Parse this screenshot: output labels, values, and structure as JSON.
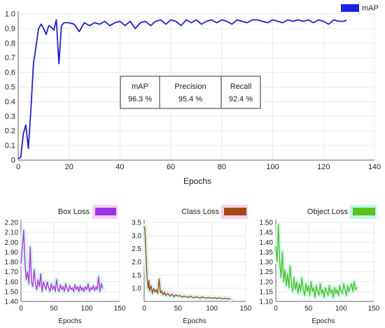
{
  "colors": {
    "map": "#1f1fcf",
    "map_legend": "#1a22e6",
    "box": "#b43ad8",
    "box_legend": "#9d35e8",
    "class": "#a04a20",
    "class_legend": "#a34a14",
    "object": "#4dc52a",
    "object_legend": "#5ac21c",
    "halo": "#d9f6f1",
    "legend_halo": "#f7c3ec",
    "grid": "#e9e9e9",
    "axis": "#666666",
    "text": "#222222"
  },
  "metrics_table": {
    "headers": [
      "mAP",
      "Precision",
      "Recall"
    ],
    "values": [
      "96.3 %",
      "95.4 %",
      "92.4 %"
    ]
  },
  "chart_data": [
    {
      "id": "map",
      "type": "line",
      "xlabel": "Epochs",
      "ylabel": "",
      "xlim": [
        0,
        140
      ],
      "ylim": [
        0,
        1.0
      ],
      "xticks": [
        "0",
        "20",
        "40",
        "60",
        "80",
        "100",
        "120",
        "140"
      ],
      "yticks": [
        "0",
        "0.1",
        "0.2",
        "0.3",
        "0.4",
        "0.5",
        "0.6",
        "0.7",
        "0.8",
        "0.9",
        "1.0"
      ],
      "grid": true,
      "legend": "top-right",
      "series": [
        {
          "name": "mAP",
          "x": [
            0,
            1,
            2,
            3,
            4,
            5,
            6,
            7,
            8,
            9,
            10,
            11,
            12,
            13,
            14,
            15,
            16,
            17,
            18,
            19,
            20,
            22,
            24,
            26,
            28,
            30,
            32,
            34,
            36,
            38,
            40,
            42,
            44,
            46,
            48,
            50,
            52,
            54,
            56,
            58,
            60,
            62,
            64,
            66,
            68,
            70,
            72,
            74,
            76,
            78,
            80,
            82,
            84,
            86,
            88,
            90,
            92,
            94,
            96,
            98,
            100,
            102,
            104,
            106,
            108,
            110,
            112,
            114,
            116,
            118,
            120,
            122,
            124,
            126,
            128,
            129
          ],
          "y": [
            0.01,
            0.02,
            0.18,
            0.24,
            0.08,
            0.35,
            0.66,
            0.78,
            0.9,
            0.93,
            0.9,
            0.86,
            0.92,
            0.91,
            0.89,
            0.96,
            0.66,
            0.92,
            0.94,
            0.94,
            0.94,
            0.93,
            0.88,
            0.94,
            0.92,
            0.94,
            0.93,
            0.95,
            0.92,
            0.94,
            0.95,
            0.92,
            0.95,
            0.9,
            0.94,
            0.95,
            0.92,
            0.95,
            0.96,
            0.93,
            0.96,
            0.95,
            0.92,
            0.96,
            0.94,
            0.96,
            0.93,
            0.95,
            0.96,
            0.94,
            0.96,
            0.95,
            0.93,
            0.96,
            0.95,
            0.94,
            0.96,
            0.96,
            0.95,
            0.94,
            0.96,
            0.95,
            0.94,
            0.96,
            0.95,
            0.96,
            0.95,
            0.96,
            0.94,
            0.96,
            0.95,
            0.93,
            0.96,
            0.95,
            0.95,
            0.96
          ]
        }
      ]
    },
    {
      "id": "box",
      "type": "line",
      "xlabel": "Epochs",
      "ylabel": "",
      "xlim": [
        0,
        150
      ],
      "ylim": [
        1.4,
        2.2
      ],
      "xticks": [
        "0",
        "50",
        "100",
        "150"
      ],
      "yticks": [
        "1.40",
        "1.50",
        "1.60",
        "1.70",
        "1.80",
        "1.90",
        "2.00",
        "2.10",
        "2.20"
      ],
      "grid": true,
      "legend": "top",
      "series": [
        {
          "name": "Box Loss",
          "x": [
            0,
            2,
            4,
            6,
            8,
            10,
            12,
            14,
            16,
            18,
            20,
            22,
            24,
            26,
            28,
            30,
            32,
            34,
            36,
            38,
            40,
            42,
            44,
            46,
            48,
            50,
            52,
            54,
            56,
            58,
            60,
            62,
            64,
            66,
            68,
            70,
            72,
            74,
            76,
            78,
            80,
            82,
            84,
            86,
            88,
            90,
            92,
            94,
            96,
            98,
            100,
            102,
            104,
            106,
            108,
            110,
            112,
            114,
            116,
            118,
            120,
            122,
            124
          ],
          "y": [
            1.78,
            1.95,
            2.12,
            1.8,
            1.62,
            1.7,
            1.58,
            1.95,
            1.6,
            1.55,
            1.72,
            1.58,
            1.52,
            1.62,
            1.55,
            1.68,
            1.5,
            1.6,
            1.56,
            1.52,
            1.6,
            1.54,
            1.5,
            1.58,
            1.52,
            1.56,
            1.5,
            1.62,
            1.53,
            1.5,
            1.57,
            1.52,
            1.55,
            1.5,
            1.58,
            1.53,
            1.5,
            1.56,
            1.52,
            1.54,
            1.5,
            1.57,
            1.52,
            1.55,
            1.5,
            1.56,
            1.51,
            1.54,
            1.5,
            1.55,
            1.52,
            1.58,
            1.5,
            1.54,
            1.52,
            1.56,
            1.51,
            1.55,
            1.52,
            1.65,
            1.5,
            1.58,
            1.53
          ]
        }
      ]
    },
    {
      "id": "class",
      "type": "line",
      "xlabel": "Epochs",
      "ylabel": "",
      "xlim": [
        0,
        150
      ],
      "ylim": [
        0.5,
        3.5
      ],
      "xticks": [
        "0",
        "50",
        "100",
        "150"
      ],
      "yticks": [
        "1.0",
        "1.5",
        "2.0",
        "2.5",
        "3.0",
        "3.5"
      ],
      "grid": true,
      "legend": "top",
      "series": [
        {
          "name": "Class Loss",
          "x": [
            0,
            1,
            2,
            3,
            4,
            5,
            6,
            7,
            8,
            10,
            12,
            14,
            16,
            18,
            20,
            22,
            24,
            26,
            28,
            30,
            32,
            35,
            38,
            41,
            44,
            47,
            50,
            53,
            56,
            59,
            62,
            65,
            68,
            71,
            74,
            77,
            80,
            83,
            86,
            89,
            92,
            95,
            98,
            101,
            104,
            107,
            110,
            113,
            116,
            119,
            122,
            125,
            128
          ],
          "y": [
            3.35,
            3.25,
            2.7,
            2.1,
            1.5,
            1.2,
            1.0,
            1.3,
            0.9,
            1.1,
            0.8,
            1.0,
            0.85,
            0.95,
            0.8,
            1.35,
            0.82,
            0.9,
            0.75,
            0.85,
            0.72,
            0.8,
            0.7,
            0.78,
            0.68,
            0.75,
            0.7,
            0.72,
            0.66,
            0.7,
            0.68,
            0.65,
            0.7,
            0.66,
            0.64,
            0.68,
            0.65,
            0.63,
            0.67,
            0.64,
            0.62,
            0.65,
            0.63,
            0.62,
            0.64,
            0.61,
            0.63,
            0.62,
            0.6,
            0.62,
            0.61,
            0.6,
            0.59
          ]
        }
      ]
    },
    {
      "id": "object",
      "type": "line",
      "xlabel": "Epochs",
      "ylabel": "",
      "xlim": [
        0,
        150
      ],
      "ylim": [
        1.1,
        1.5
      ],
      "xticks": [
        "0",
        "50",
        "100",
        "150"
      ],
      "yticks": [
        "1.10",
        "1.15",
        "1.20",
        "1.25",
        "1.30",
        "1.35",
        "1.40",
        "1.45",
        "1.50"
      ],
      "grid": true,
      "legend": "top",
      "series": [
        {
          "name": "Object Loss",
          "x": [
            0,
            2,
            4,
            6,
            8,
            10,
            12,
            14,
            16,
            18,
            20,
            22,
            24,
            26,
            28,
            30,
            32,
            34,
            36,
            38,
            40,
            42,
            44,
            46,
            48,
            50,
            52,
            54,
            56,
            58,
            60,
            62,
            64,
            66,
            68,
            70,
            72,
            74,
            76,
            78,
            80,
            82,
            84,
            86,
            88,
            90,
            92,
            94,
            96,
            98,
            100,
            102,
            104,
            106,
            108,
            110,
            112,
            114,
            116,
            118,
            120,
            122,
            124
          ],
          "y": [
            1.38,
            1.3,
            1.49,
            1.3,
            1.22,
            1.35,
            1.2,
            1.26,
            1.18,
            1.24,
            1.17,
            1.28,
            1.19,
            1.15,
            1.22,
            1.16,
            1.2,
            1.14,
            1.19,
            1.15,
            1.22,
            1.16,
            1.13,
            1.19,
            1.15,
            1.18,
            1.13,
            1.2,
            1.15,
            1.17,
            1.12,
            1.18,
            1.15,
            1.13,
            1.19,
            1.14,
            1.16,
            1.12,
            1.17,
            1.15,
            1.13,
            1.18,
            1.14,
            1.16,
            1.12,
            1.17,
            1.14,
            1.16,
            1.13,
            1.18,
            1.15,
            1.14,
            1.19,
            1.16,
            1.13,
            1.18,
            1.15,
            1.17,
            1.19,
            1.15,
            1.2,
            1.16,
            1.17
          ]
        }
      ]
    }
  ]
}
